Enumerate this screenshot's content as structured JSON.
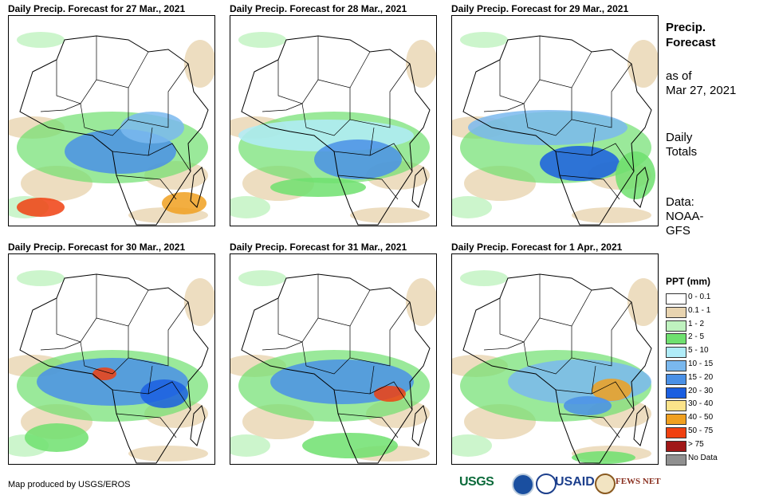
{
  "panels": [
    {
      "title": "Daily Precip. Forecast for 27 Mar., 2021",
      "wet_band": "south_heavy"
    },
    {
      "title": "Daily Precip. Forecast for 28 Mar., 2021",
      "wet_band": "central"
    },
    {
      "title": "Daily Precip. Forecast for 29 Mar., 2021",
      "wet_band": "central_north"
    },
    {
      "title": "Daily Precip. Forecast for 30 Mar., 2021",
      "wet_band": "central_heavy"
    },
    {
      "title": "Daily Precip. Forecast for 31 Mar., 2021",
      "wet_band": "central_east"
    },
    {
      "title": "Daily Precip. Forecast for 1 Apr., 2021",
      "wet_band": "east_heavy"
    }
  ],
  "side": {
    "heading_1": "Precip.",
    "heading_2": "Forecast",
    "asof_1": "as of",
    "asof_2": "Mar 27, 2021",
    "totals_1": "Daily",
    "totals_2": "Totals",
    "data_1": "Data:",
    "data_2": "NOAA-",
    "data_3": "GFS"
  },
  "legend": {
    "title": "PPT (mm)",
    "items": [
      {
        "label": "0 - 0.1",
        "color": "#ffffff"
      },
      {
        "label": "0.1 - 1",
        "color": "#e8d4b0"
      },
      {
        "label": "1 - 2",
        "color": "#bff2bf"
      },
      {
        "label": "2 - 5",
        "color": "#6fe06f"
      },
      {
        "label": "5 - 10",
        "color": "#b0ecf8"
      },
      {
        "label": "10 - 15",
        "color": "#7ab8ee"
      },
      {
        "label": "15 - 20",
        "color": "#4a90e6"
      },
      {
        "label": "20 - 30",
        "color": "#1a5ee0"
      },
      {
        "label": "30 - 40",
        "color": "#fbe38a"
      },
      {
        "label": "40 - 50",
        "color": "#f0a020"
      },
      {
        "label": "50 - 75",
        "color": "#f04010"
      },
      {
        "label": "> 75",
        "color": "#a01818"
      },
      {
        "label": "No Data",
        "color": "#909090"
      }
    ]
  },
  "credit": "Map produced by USGS/EROS",
  "logos": {
    "usgs": "USGS",
    "usaid": "USAID",
    "fews": "FEWS NET"
  }
}
